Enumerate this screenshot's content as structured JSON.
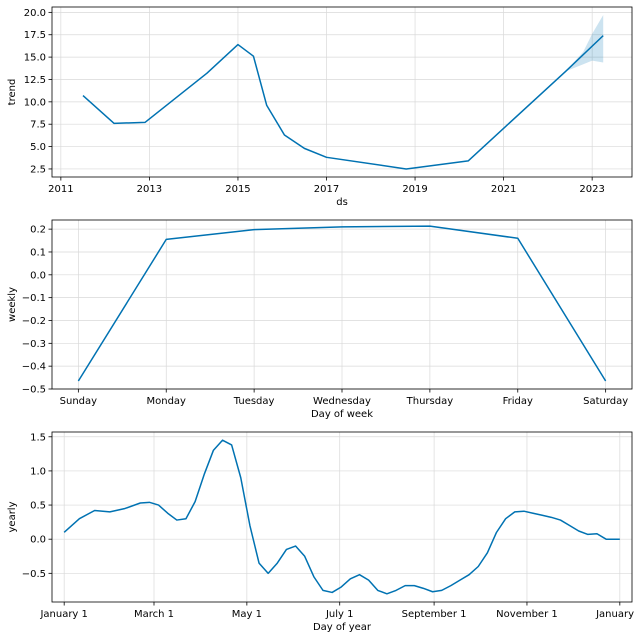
{
  "colors": {
    "line": "#0072B2",
    "band": "#0072B2",
    "grid": "#d9d9d9"
  },
  "chart_data": [
    {
      "type": "line",
      "title": "",
      "xlabel": "ds",
      "ylabel": "trend",
      "grid": true,
      "xlim": [
        2010.8,
        2023.9
      ],
      "ylim": [
        1.6,
        20.6
      ],
      "xticks": [
        2011,
        2013,
        2015,
        2017,
        2019,
        2021,
        2023
      ],
      "xtick_labels": [
        "2011",
        "2013",
        "2015",
        "2017",
        "2019",
        "2021",
        "2023"
      ],
      "yticks": [
        2.5,
        5.0,
        7.5,
        10.0,
        12.5,
        15.0,
        17.5,
        20.0
      ],
      "ytick_labels": [
        "2.5",
        "5.0",
        "7.5",
        "10.0",
        "12.5",
        "15.0",
        "17.5",
        "20.0"
      ],
      "series": [
        {
          "name": "trend",
          "x": [
            2011.5,
            2012.2,
            2012.9,
            2014.3,
            2015.0,
            2015.35,
            2015.65,
            2016.05,
            2016.5,
            2017.0,
            2018.8,
            2020.2,
            2022.4,
            2023.25
          ],
          "y": [
            10.7,
            7.6,
            7.7,
            13.2,
            16.4,
            15.1,
            9.6,
            6.3,
            4.8,
            3.8,
            2.5,
            3.4,
            13.4,
            17.4
          ]
        }
      ],
      "uncertainty_band": {
        "x": [
          2022.4,
          2022.8,
          2023.0,
          2023.25
        ],
        "lower": [
          13.4,
          14.2,
          14.6,
          14.4
        ],
        "upper": [
          13.4,
          15.6,
          17.6,
          19.7
        ]
      }
    },
    {
      "type": "line",
      "title": "",
      "xlabel": "Day of week",
      "ylabel": "weekly",
      "grid": true,
      "xlim": [
        -0.3,
        6.3
      ],
      "ylim": [
        -0.5,
        0.24
      ],
      "categories": [
        "Sunday",
        "Monday",
        "Tuesday",
        "Wednesday",
        "Thursday",
        "Friday",
        "Saturday"
      ],
      "yticks": [
        -0.5,
        -0.4,
        -0.3,
        -0.2,
        -0.1,
        0.0,
        0.1,
        0.2
      ],
      "ytick_labels": [
        "−0.5",
        "−0.4",
        "−0.3",
        "−0.2",
        "−0.1",
        "0.0",
        "0.1",
        "0.2"
      ],
      "series": [
        {
          "name": "weekly",
          "values": [
            -0.465,
            0.155,
            0.198,
            0.21,
            0.213,
            0.16,
            -0.465
          ]
        }
      ]
    },
    {
      "type": "line",
      "title": "",
      "xlabel": "Day of year",
      "ylabel": "yearly",
      "grid": true,
      "xlim": [
        -8,
        373
      ],
      "ylim": [
        -0.92,
        1.57
      ],
      "xticks": [
        0,
        59,
        120,
        181,
        243,
        304,
        365
      ],
      "xtick_labels": [
        "January 1",
        "March 1",
        "May 1",
        "July 1",
        "September 1",
        "November 1",
        "January 1"
      ],
      "yticks": [
        -0.5,
        0.0,
        0.5,
        1.0,
        1.5
      ],
      "ytick_labels": [
        "−0.5",
        "0.0",
        "0.5",
        "1.0",
        "1.5"
      ],
      "series": [
        {
          "name": "yearly",
          "x": [
            0,
            10,
            20,
            30,
            40,
            50,
            56,
            62,
            68,
            74,
            80,
            86,
            92,
            98,
            104,
            110,
            116,
            122,
            128,
            134,
            140,
            146,
            152,
            158,
            164,
            170,
            176,
            182,
            188,
            194,
            200,
            206,
            212,
            218,
            224,
            230,
            236,
            242,
            248,
            254,
            260,
            266,
            272,
            278,
            284,
            290,
            296,
            302,
            308,
            314,
            320,
            326,
            332,
            338,
            344,
            350,
            356,
            362,
            365
          ],
          "y": [
            0.1,
            0.3,
            0.42,
            0.4,
            0.45,
            0.53,
            0.54,
            0.5,
            0.38,
            0.28,
            0.3,
            0.55,
            0.95,
            1.3,
            1.45,
            1.38,
            0.9,
            0.2,
            -0.35,
            -0.5,
            -0.35,
            -0.15,
            -0.1,
            -0.25,
            -0.55,
            -0.75,
            -0.78,
            -0.7,
            -0.58,
            -0.52,
            -0.6,
            -0.75,
            -0.8,
            -0.75,
            -0.68,
            -0.68,
            -0.72,
            -0.77,
            -0.75,
            -0.68,
            -0.6,
            -0.52,
            -0.4,
            -0.2,
            0.1,
            0.3,
            0.4,
            0.41,
            0.38,
            0.35,
            0.32,
            0.28,
            0.2,
            0.12,
            0.07,
            0.08,
            0.0,
            0.0,
            0.0
          ]
        }
      ]
    }
  ]
}
